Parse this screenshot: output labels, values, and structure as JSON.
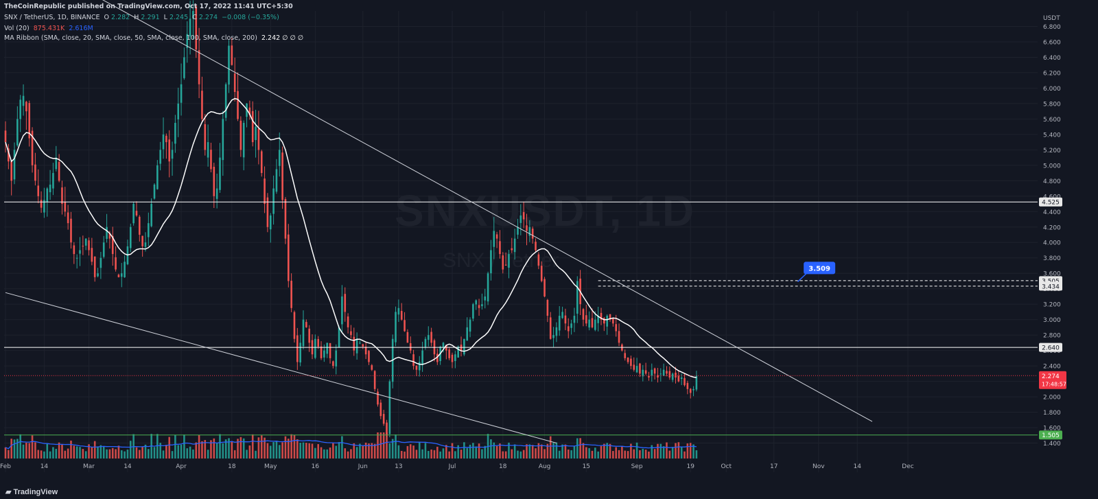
{
  "header": {
    "publisher": "TheCoinRepublic published on TradingView.com, Oct 17, 2022 11:41 UTC+5:30",
    "symbol": "SNX / TetherUS, 1D, BINANCE",
    "ohlc": {
      "o_label": "O",
      "o": "2.282",
      "h_label": "H",
      "h": "2.291",
      "l_label": "L",
      "l": "2.245",
      "c_label": "C",
      "c": "2.274",
      "chg": "−0.008 (−0.35%)"
    },
    "vol_label": "Vol (20)",
    "vol_value1": "875.431K",
    "vol_value2": "2.616M",
    "ma_label": "MA Ribbon (SMA, close, 20, SMA, close, 50, SMA, close, 100, SMA, close, 200)",
    "ma_values": "2.242  ∅  ∅  ∅",
    "watermark_symbol": "SNXUSDT, 1D",
    "watermark_name": "SNX / Tether",
    "branding": "TradingView"
  },
  "chart_data": {
    "type": "candlestick",
    "axis_currency": "USDT",
    "ylim": [
      1.2,
      7.0
    ],
    "y_ticks": [
      1.4,
      1.6,
      1.8,
      2.0,
      2.2,
      2.4,
      2.6,
      2.8,
      3.0,
      3.2,
      3.4,
      3.6,
      3.8,
      4.0,
      4.2,
      4.4,
      4.6,
      4.8,
      5.0,
      5.2,
      5.4,
      5.6,
      5.8,
      6.0,
      6.2,
      6.4,
      6.6,
      6.8
    ],
    "x_ticks": [
      {
        "label": "Feb",
        "date": "2022-02-01"
      },
      {
        "label": "14",
        "date": "2022-02-14"
      },
      {
        "label": "Mar",
        "date": "2022-03-01"
      },
      {
        "label": "14",
        "date": "2022-03-14"
      },
      {
        "label": "Apr",
        "date": "2022-04-01"
      },
      {
        "label": "18",
        "date": "2022-04-18"
      },
      {
        "label": "May",
        "date": "2022-05-01"
      },
      {
        "label": "16",
        "date": "2022-05-16"
      },
      {
        "label": "Jun",
        "date": "2022-06-01"
      },
      {
        "label": "13",
        "date": "2022-06-13"
      },
      {
        "label": "Jul",
        "date": "2022-07-01"
      },
      {
        "label": "18",
        "date": "2022-07-18"
      },
      {
        "label": "Aug",
        "date": "2022-08-01"
      },
      {
        "label": "15",
        "date": "2022-08-15"
      },
      {
        "label": "Sep",
        "date": "2022-09-01"
      },
      {
        "label": "19",
        "date": "2022-09-19"
      },
      {
        "label": "Oct",
        "date": "2022-10-01"
      },
      {
        "label": "17",
        "date": "2022-10-17"
      },
      {
        "label": "Nov",
        "date": "2022-11-01"
      },
      {
        "label": "14",
        "date": "2022-11-14"
      },
      {
        "label": "Dec",
        "date": "2022-12-01"
      }
    ],
    "candles_start_date": "2022-02-01",
    "closes": [
      5.3,
      5.05,
      4.8,
      5.2,
      5.6,
      5.85,
      5.9,
      5.7,
      5.35,
      5.0,
      4.8,
      4.6,
      4.45,
      4.55,
      4.7,
      4.75,
      4.9,
      5.1,
      4.8,
      4.5,
      4.4,
      4.25,
      4.0,
      3.85,
      3.8,
      3.9,
      3.95,
      4.05,
      3.9,
      3.75,
      3.55,
      3.6,
      3.8,
      4.0,
      4.2,
      4.05,
      3.85,
      3.65,
      3.55,
      3.6,
      3.75,
      3.95,
      4.2,
      4.5,
      4.35,
      4.1,
      3.95,
      4.0,
      4.25,
      4.5,
      4.75,
      5.0,
      5.2,
      5.4,
      5.3,
      5.05,
      5.2,
      5.55,
      5.8,
      6.05,
      6.4,
      6.7,
      6.9,
      7.0,
      6.5,
      6.05,
      5.6,
      5.2,
      5.3,
      4.95,
      4.6,
      4.7,
      5.1,
      5.6,
      6.05,
      6.55,
      6.3,
      5.95,
      5.6,
      5.2,
      5.55,
      5.8,
      5.65,
      5.3,
      5.5,
      5.2,
      4.9,
      4.5,
      4.2,
      4.35,
      4.7,
      4.95,
      5.2,
      4.55,
      4.05,
      3.5,
      3.15,
      2.75,
      2.45,
      2.7,
      3.0,
      2.9,
      2.7,
      2.55,
      2.75,
      2.65,
      2.5,
      2.6,
      2.7,
      2.5,
      2.4,
      2.6,
      2.9,
      3.3,
      3.1,
      2.9,
      2.8,
      2.6,
      2.75,
      2.7,
      2.65,
      2.55,
      2.45,
      2.35,
      2.1,
      1.9,
      1.75,
      1.65,
      1.5,
      2.2,
      2.75,
      3.1,
      3.15,
      3.0,
      2.85,
      2.7,
      2.6,
      2.4,
      2.35,
      2.45,
      2.6,
      2.75,
      2.8,
      2.7,
      2.55,
      2.45,
      2.65,
      2.7,
      2.6,
      2.5,
      2.45,
      2.55,
      2.65,
      2.6,
      2.75,
      2.9,
      3.0,
      3.2,
      3.25,
      3.15,
      3.2,
      3.3,
      3.6,
      3.9,
      4.15,
      4.05,
      3.85,
      3.65,
      3.7,
      3.85,
      3.9,
      4.05,
      4.2,
      4.35,
      4.3,
      4.15,
      4.2,
      4.05,
      3.9,
      3.7,
      3.5,
      3.3,
      3.05,
      2.75,
      2.8,
      2.9,
      3.05,
      3.1,
      2.95,
      2.85,
      2.95,
      3.05,
      3.5,
      3.2,
      3.0,
      2.95,
      3.0,
      2.9,
      3.0,
      3.05,
      3.0,
      2.95,
      3.05,
      3.0,
      2.95,
      2.85,
      2.7,
      2.6,
      2.5,
      2.45,
      2.4,
      2.35,
      2.4,
      2.3,
      2.35,
      2.3,
      2.25,
      2.35,
      2.3,
      2.25,
      2.3,
      2.35,
      2.3,
      2.25,
      2.3,
      2.25,
      2.2,
      2.25,
      2.15,
      2.1,
      2.05,
      2.1,
      2.274
    ],
    "ma20_label": "SMA 20",
    "hlines": [
      {
        "value": 4.525,
        "label": "4.525",
        "color": "#ffffff",
        "style": "solid"
      },
      {
        "value": 2.64,
        "label": "2.640",
        "color": "#ffffff",
        "style": "solid"
      },
      {
        "value": 3.505,
        "label": "3.505",
        "color": "#ffffff",
        "style": "dashed"
      },
      {
        "value": 3.434,
        "label": "3.434",
        "color": "#ffffff",
        "style": "dashed"
      },
      {
        "value": 1.505,
        "label": "1.505",
        "color": "#4caf50",
        "style": "solid"
      }
    ],
    "current_price": {
      "value": 2.274,
      "label": "2.274",
      "countdown": "17:48:57",
      "color": "#f23645"
    },
    "annotation": {
      "text": "3.509",
      "value": 3.509,
      "date": "2022-10-27"
    },
    "trendlines": [
      {
        "from": {
          "date": "2022-03-03",
          "value": 7.2
        },
        "to": {
          "date": "2022-11-19",
          "value": 1.68
        }
      },
      {
        "from": {
          "date": "2022-02-01",
          "value": 3.35
        },
        "to": {
          "date": "2022-08-05",
          "value": 1.4
        }
      }
    ],
    "colors": {
      "up": "#26a69a",
      "down": "#ef5350",
      "ma": "#ffffff",
      "vol_ma": "#2962ff",
      "grid": "#1e222d",
      "bg": "#131722"
    }
  }
}
